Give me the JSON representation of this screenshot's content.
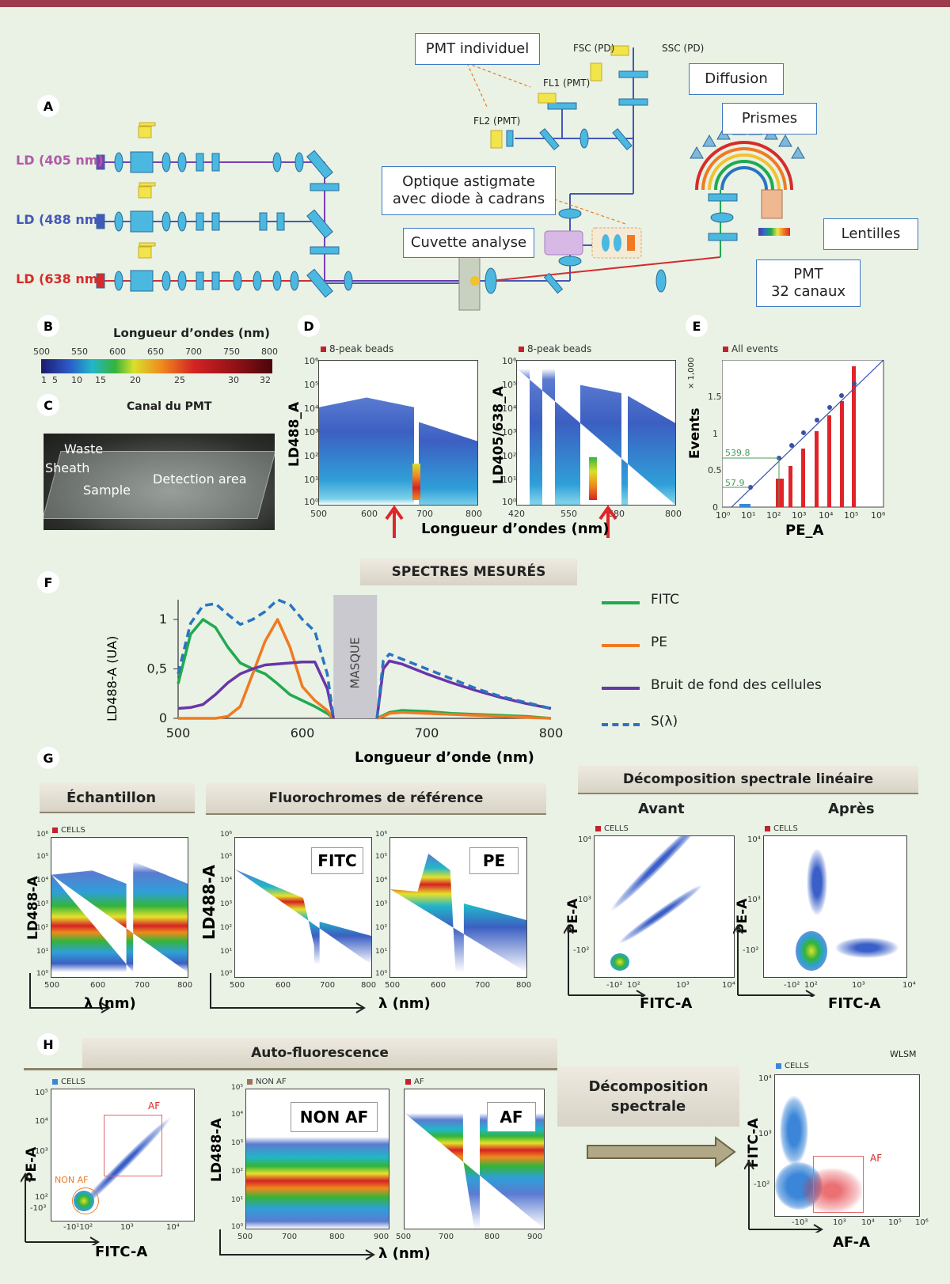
{
  "colors": {
    "accent": "#9c3b4b",
    "box_border": "#3f79c4",
    "fitc": "#21a950",
    "pe": "#f07a22",
    "bruit": "#6a35a8",
    "s_lambda": "#2a74c2",
    "laser405": "#7b3fb2",
    "laser488": "#4458b8",
    "laser638": "#d72b2b"
  },
  "panel_letters": {
    "A": "A",
    "B": "B",
    "C": "C",
    "D": "D",
    "E": "E",
    "F": "F",
    "G": "G",
    "H": "H"
  },
  "panel_a": {
    "lasers": [
      "LD (405 nm)",
      "LD (488 nm)",
      "LD (638 nm)"
    ],
    "boxes": {
      "pmt_individuel": "PMT individuel",
      "diffusion": "Diffusion",
      "prismes": "Prismes",
      "optique_line1": "Optique astigmate",
      "optique_line2": "avec diode à cadrans",
      "cuvette": "Cuvette analyse",
      "lentilles": "Lentilles",
      "pmt32_line1": "PMT",
      "pmt32_line2": "32 canaux"
    },
    "detectors": {
      "fsc": "FSC (PD)",
      "ssc": "SSC (PD)",
      "fl1": "FL1 (PMT)",
      "fl2": "FL2 (PMT)"
    }
  },
  "panel_b": {
    "title": "Longueur d’ondes (nm)",
    "wavelength_ticks": [
      "500",
      "550",
      "600",
      "650",
      "700",
      "750",
      "800"
    ],
    "channel_ticks": [
      "1",
      "5",
      "10",
      "15",
      "20",
      "25",
      "30",
      "32"
    ],
    "caption": "Canal du PMT"
  },
  "panel_c": {
    "labels": [
      "Waste",
      "Sheath",
      "Sample",
      "Detection area"
    ]
  },
  "panel_d": {
    "legend1": "8-peak beads",
    "legend2": "8-peak beads",
    "ylabel1": "LD488_A",
    "ylabel2": "LD405/638_A",
    "xticks1": [
      "500",
      "600",
      "700",
      "800"
    ],
    "xticks2": [
      "420",
      "550",
      "680",
      "800"
    ],
    "yticks": [
      "10⁰",
      "10¹",
      "10²",
      "10³",
      "10⁴",
      "10⁵",
      "10⁶"
    ],
    "xlabel": "Longueur d’ondes (nm)"
  },
  "panel_e": {
    "legend": "All events",
    "ylabel": "Events",
    "scale": "× 1,000",
    "yticks": [
      "0",
      "0.5",
      "1",
      "1.5"
    ],
    "xticks": [
      "10⁰",
      "10¹",
      "10²",
      "10³",
      "10⁴",
      "10⁵",
      "10⁶"
    ],
    "annot1": "539.8",
    "annot2": "57.9",
    "xlabel": "PE_A"
  },
  "panel_f": {
    "title": "SPECTRES MESURÉS",
    "mask": "MASQUE",
    "ylabel": "LD488-A (UA)",
    "xlabel": "Longueur d’onde (nm)",
    "legend": [
      "FITC",
      "PE",
      "Bruit de fond des cellules",
      "S(λ)"
    ]
  },
  "chart_data": {
    "type": "line",
    "title": "SPECTRES MESURÉS",
    "xlabel": "Longueur d’onde (nm)",
    "ylabel": "LD488-A (UA)",
    "xlim": [
      500,
      800
    ],
    "ylim": [
      0,
      1.2
    ],
    "xticks": [
      "500",
      "600",
      "700",
      "800"
    ],
    "yticks": [
      "0",
      "0,5",
      "1"
    ],
    "mask": [
      625,
      660
    ],
    "x": [
      500,
      510,
      520,
      530,
      540,
      550,
      560,
      570,
      580,
      590,
      600,
      610,
      620,
      625,
      660,
      665,
      670,
      680,
      700,
      720,
      740,
      760,
      780,
      800
    ],
    "series": [
      {
        "name": "FITC",
        "values": [
          0.35,
          0.85,
          1.0,
          0.92,
          0.72,
          0.56,
          0.5,
          0.45,
          0.35,
          0.24,
          0.18,
          0.12,
          0.05,
          0.0,
          0.0,
          0.03,
          0.06,
          0.08,
          0.07,
          0.05,
          0.04,
          0.03,
          0.02,
          0.0
        ]
      },
      {
        "name": "PE",
        "values": [
          0.0,
          0.0,
          0.0,
          0.0,
          0.02,
          0.12,
          0.45,
          0.78,
          1.0,
          0.72,
          0.32,
          0.18,
          0.08,
          0.0,
          0.0,
          0.02,
          0.05,
          0.06,
          0.05,
          0.04,
          0.03,
          0.02,
          0.01,
          0.0
        ]
      },
      {
        "name": "Bruit de fond des cellules",
        "values": [
          0.1,
          0.11,
          0.14,
          0.24,
          0.36,
          0.45,
          0.5,
          0.54,
          0.55,
          0.56,
          0.57,
          0.57,
          0.3,
          0.0,
          0.0,
          0.5,
          0.58,
          0.55,
          0.45,
          0.36,
          0.28,
          0.21,
          0.15,
          0.1
        ]
      },
      {
        "name": "S(λ)",
        "values": [
          0.45,
          0.96,
          1.14,
          1.16,
          1.05,
          0.95,
          1.0,
          1.08,
          1.2,
          1.15,
          1.0,
          0.88,
          0.45,
          0.0,
          0.0,
          0.58,
          0.65,
          0.6,
          0.5,
          0.4,
          0.3,
          0.22,
          0.16,
          0.1
        ]
      }
    ]
  },
  "panel_g": {
    "bar_echantillon": "Échantillon",
    "bar_ref": "Fluorochromes de référence",
    "bar_decomp": "Décomposition spectrale linéaire",
    "avant": "Avant",
    "apres": "Après",
    "legend_cells": "CELLS",
    "ylabel": "LD488-A",
    "xlabel_lambda": "λ (nm)",
    "fitc": "FITC",
    "pe": "PE",
    "yticks": [
      "10⁰",
      "10¹",
      "10²",
      "10³",
      "10⁴",
      "10⁵",
      "10⁶"
    ],
    "xticks": [
      "500",
      "600",
      "700",
      "800"
    ],
    "scatter_ylabel": "PE-A",
    "scatter_xlabel": "FITC-A",
    "scatter_xticks": [
      "-10²",
      "10²",
      "10³",
      "10⁴"
    ],
    "scatter_yticks": [
      "-10²",
      "10³",
      "10⁴"
    ],
    "scatter_xticks_apres": [
      "-10²",
      "10²",
      "10³",
      "10⁴"
    ],
    "scatter_yticks_apres": [
      "-10²",
      "10³",
      "10⁴"
    ]
  },
  "panel_h": {
    "bar_af": "Auto-fluorescence",
    "legend_cells": "CELLS",
    "legend_nonaf": "NON AF",
    "legend_af": "AF",
    "af": "AF",
    "non_af": "NON AF",
    "ylabel_pe": "PE-A",
    "xlabel_fitc": "FITC-A",
    "ylabel_ld": "LD488-A",
    "xlabel_lambda": "λ (nm)",
    "decomp_line1": "Décomposition",
    "decomp_line2": "spectrale",
    "wlsm": "WLSM",
    "ylabel_fitc": "FITC-A",
    "xlabel_af": "AF-A",
    "xticks_spec": [
      "500",
      "700",
      "800",
      "900"
    ],
    "xticks_spec2": [
      "500",
      "700",
      "800",
      "900"
    ],
    "yticks_spec": [
      "10⁰",
      "10¹",
      "10²",
      "10³",
      "10⁴",
      "10⁵"
    ],
    "scatter1_xticks": [
      "-10¹10²",
      "10³",
      "10⁴"
    ],
    "scatter1_yticks": [
      "-10³",
      "10²",
      "10³",
      "10⁴",
      "10⁵"
    ],
    "scatter2_xticks": [
      "-10³",
      "10³",
      "10⁴",
      "10⁵",
      "10⁶"
    ],
    "scatter2_yticks": [
      "-10²",
      "10³",
      "10⁴"
    ]
  }
}
